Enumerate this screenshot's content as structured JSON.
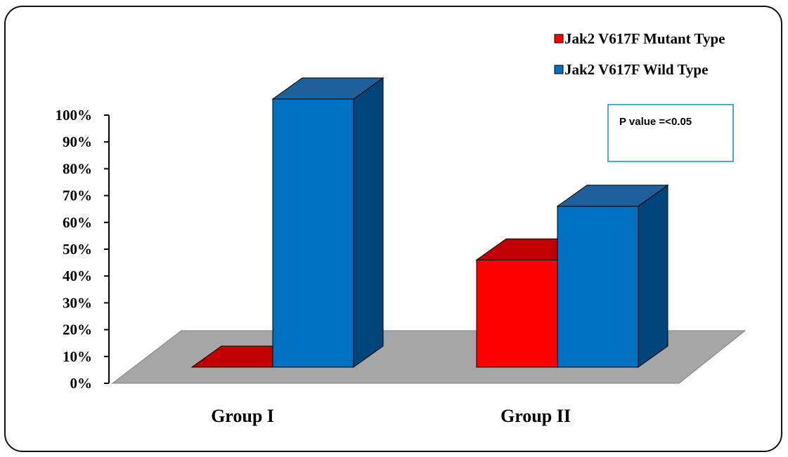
{
  "chart_data": {
    "type": "bar",
    "categories": [
      "Group I",
      "Group II"
    ],
    "series": [
      {
        "name": "Jak2 V617F Mutant Type",
        "values": [
          0,
          40
        ],
        "color": "#ff0000"
      },
      {
        "name": "Jak2 V617F Wild Type",
        "values": [
          100,
          60
        ],
        "color": "#0070c0"
      }
    ],
    "yticks": [
      "0%",
      "10%",
      "20%",
      "30%",
      "40%",
      "50%",
      "60%",
      "70%",
      "80%",
      "90%",
      "100%"
    ],
    "ylim": [
      0,
      100
    ],
    "legend": "top-right",
    "grid": false,
    "annotation": "P value =<0.05"
  }
}
